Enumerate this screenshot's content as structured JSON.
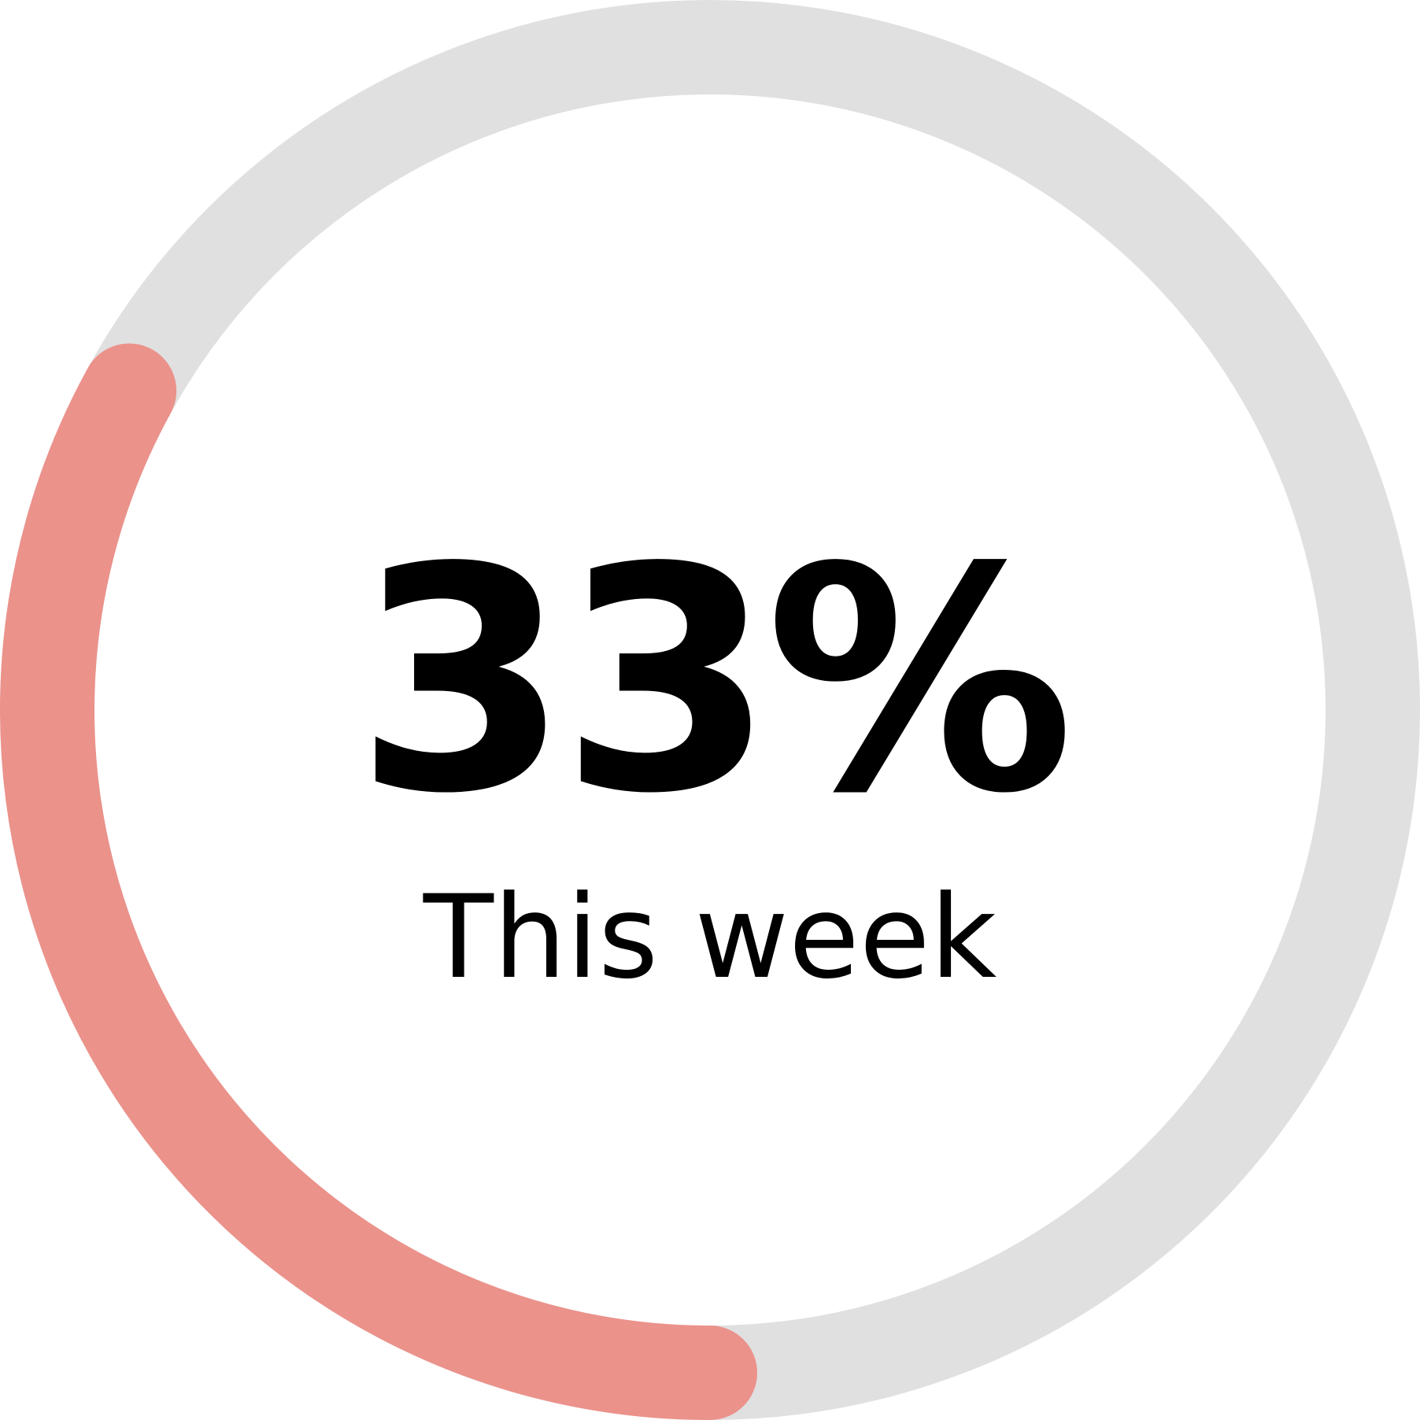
{
  "chart_data": {
    "type": "gauge",
    "value": 33,
    "max": 100,
    "value_label": "33%",
    "caption": "This week",
    "colors": {
      "progress": "#eb928b",
      "track": "#e0e0e0",
      "text": "#000000"
    }
  }
}
